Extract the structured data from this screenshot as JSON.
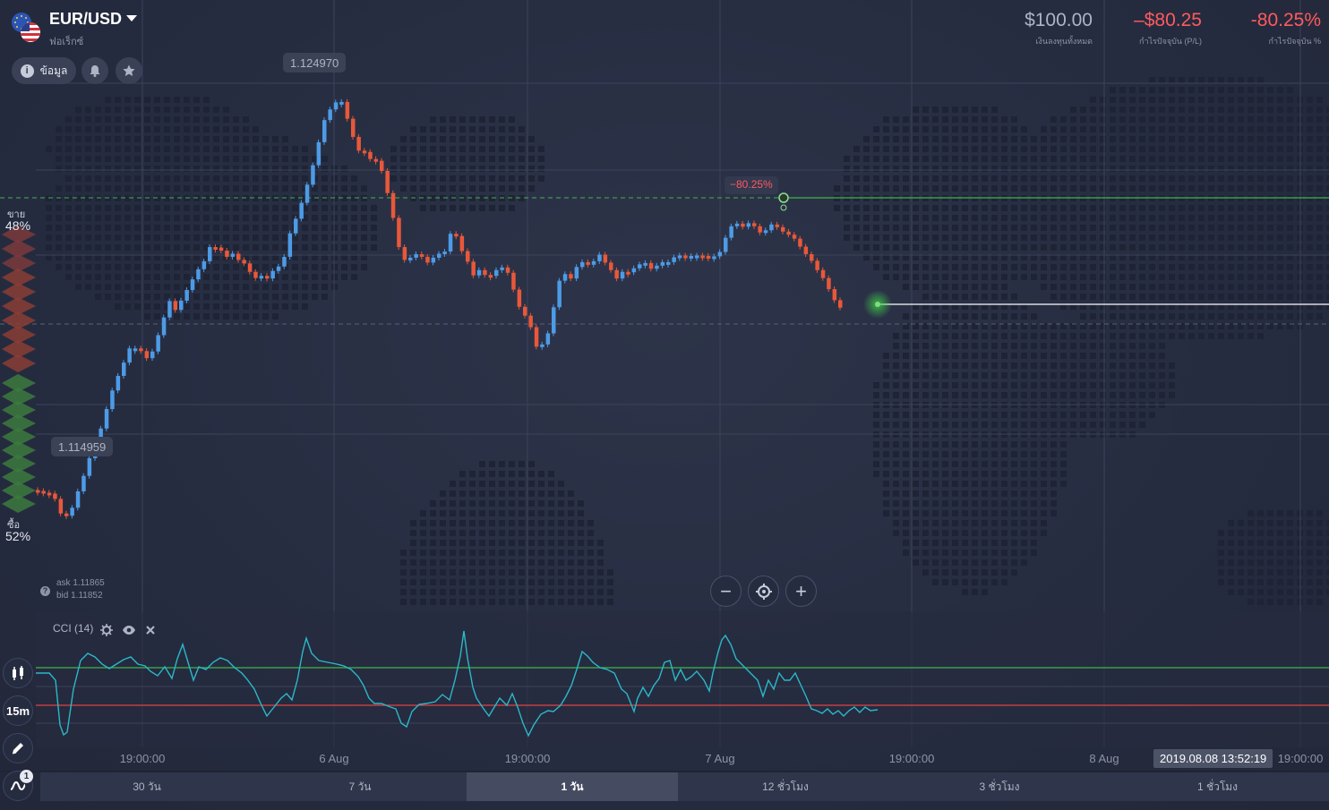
{
  "asset": {
    "pair": "EUR/USD",
    "category": "ฟอเร็กซ์"
  },
  "header": {
    "info_label": "ข้อมูล",
    "stats": [
      {
        "value": "$100.00",
        "label": "เงินลงทุนทั้งหมด",
        "color": "#aeb4c4"
      },
      {
        "value": "–$80.25",
        "label": "กำไรปัจจุบัน (P/L)",
        "color": "#ff5a5f"
      },
      {
        "value": "-80.25%",
        "label": "กำไรปัจจุบัน %",
        "color": "#ff5a5f"
      }
    ]
  },
  "price_tags": {
    "high": "1.124970",
    "low": "1.114959"
  },
  "position": {
    "pl_label": "−80.25%"
  },
  "sentiment": {
    "sell_label": "ขาย",
    "sell_pct": "48%",
    "buy_label": "ซื้อ",
    "buy_pct": "52%"
  },
  "quote": {
    "ask": "ask 1.11865",
    "bid": "bid 1.11852"
  },
  "indicator": {
    "name": "CCI (14)"
  },
  "toolbar": {
    "timeframe": "15m",
    "indicator_count": "1"
  },
  "x_axis": [
    "19:00:00",
    "6 Aug",
    "19:00:00",
    "7 Aug",
    "19:00:00",
    "8 Aug",
    "19:00:00"
  ],
  "current_time": "2019.08.08 13:52:19",
  "timeframes": [
    {
      "label": "30 วัน",
      "active": false
    },
    {
      "label": "7 วัน",
      "active": false
    },
    {
      "label": "1 วัน",
      "active": true
    },
    {
      "label": "12 ชั่วโมง",
      "active": false
    },
    {
      "label": "3 ชั่วโมง",
      "active": false
    },
    {
      "label": "1 ชั่วโมง",
      "active": false
    }
  ],
  "colors": {
    "up": "#4d9be6",
    "down": "#e8583a",
    "cci_line": "#2bb8c9",
    "upper_band": "#3fb54a",
    "lower_band": "#e04545",
    "current_price_line": "#ffffff",
    "entry_line": "#3fb54a"
  },
  "chart_data": {
    "type": "candlestick",
    "y_high": 1.12497,
    "y_low": 1.114959,
    "close_path": [
      1.11596,
      1.11592,
      1.1159,
      1.11578,
      1.11545,
      1.1154,
      1.11558,
      1.11595,
      1.1163,
      1.1167,
      1.11702,
      1.11737,
      1.11781,
      1.11823,
      1.11856,
      1.11886,
      1.11918,
      1.11918,
      1.11912,
      1.11896,
      1.11911,
      1.11948,
      1.11988,
      1.12025,
      1.12005,
      1.12026,
      1.1205,
      1.12074,
      1.12097,
      1.12115,
      1.12147,
      1.12146,
      1.12139,
      1.12125,
      1.12132,
      1.12118,
      1.1211,
      1.12091,
      1.12077,
      1.12082,
      1.12076,
      1.12093,
      1.12103,
      1.12125,
      1.12178,
      1.12211,
      1.12247,
      1.12288,
      1.12332,
      1.12384,
      1.12434,
      1.12458,
      1.12474,
      1.12475,
      1.12437,
      1.12396,
      1.12365,
      1.12362,
      1.12346,
      1.12342,
      1.12319,
      1.12269,
      1.12213,
      1.12147,
      1.12118,
      1.12123,
      1.12131,
      1.12125,
      1.12112,
      1.12123,
      1.12132,
      1.12137,
      1.12177,
      1.12172,
      1.12138,
      1.12114,
      1.12083,
      1.12095,
      1.12084,
      1.12082,
      1.12095,
      1.12101,
      1.12089,
      1.12051,
      1.12012,
      1.11992,
      1.11966,
      1.11922,
      1.11927,
      1.11952,
      1.12011,
      1.12071,
      1.12086,
      1.12076,
      1.12102,
      1.12113,
      1.12107,
      1.12115,
      1.1213,
      1.12112,
      1.12095,
      1.12076,
      1.12091,
      1.1209,
      1.12099,
      1.12108,
      1.12111,
      1.12098,
      1.12105,
      1.12113,
      1.12113,
      1.12124,
      1.12128,
      1.12123,
      1.12127,
      1.12128,
      1.12127,
      1.12125,
      1.12126,
      1.12136,
      1.12168,
      1.12194,
      1.122,
      1.12193,
      1.12201,
      1.12194,
      1.1218,
      1.12185,
      1.12198,
      1.12192,
      1.12182,
      1.12175,
      1.12166,
      1.12148,
      1.12131,
      1.12116,
      1.12095,
      1.12077,
      1.12052,
      1.12027,
      1.1201
    ]
  }
}
